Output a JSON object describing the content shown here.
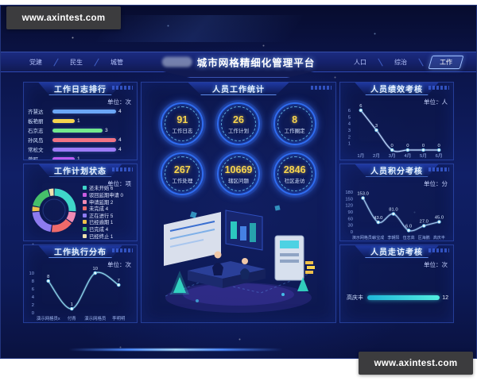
{
  "watermark": {
    "text": "www.axintest.com"
  },
  "navbar": {
    "left_tabs": [
      "党建",
      "民生",
      "城管"
    ],
    "title": "城市网格精细化管理平台",
    "right_tabs": [
      "人口",
      "综治"
    ],
    "active_tab": "工作"
  },
  "stats_panel": {
    "title": "人员工作统计",
    "stats": [
      {
        "value": "91",
        "label": "工作日志"
      },
      {
        "value": "26",
        "label": "工作计划"
      },
      {
        "value": "8",
        "label": "工作圈定"
      },
      {
        "value": "267",
        "label": "工作处理"
      },
      {
        "value": "10669",
        "label": "辖区问题"
      },
      {
        "value": "2846",
        "label": "社区走访"
      }
    ],
    "value_color": "#f7d44e",
    "ring_color": "#2f6cf0"
  },
  "chart_data": [
    {
      "id": "work_log_ranking",
      "type": "bar",
      "orientation": "horizontal",
      "title": "工作日志排行",
      "unit": "单位：次",
      "categories": [
        "齐慧达",
        "板艳丽",
        "石京志",
        "孙风岛",
        "常松文",
        "曾町"
      ],
      "values": [
        4,
        1,
        3,
        4,
        4,
        1
      ],
      "colors": [
        "#6ba7f7",
        "#f5d44e",
        "#72e98c",
        "#f07384",
        "#9d7bf7",
        "#bb5bf0"
      ],
      "xlim": [
        0,
        4
      ]
    },
    {
      "id": "work_plan_status",
      "type": "pie",
      "title": "工作计划状态",
      "unit": "单位：项",
      "labels": [
        "还未开始",
        "驳回延期申请",
        "申请延期",
        "未完成",
        "正在进行",
        "已经逾期",
        "已完成",
        "已经终止"
      ],
      "values": [
        6,
        0,
        2,
        4,
        5,
        1,
        4,
        1
      ],
      "colors": [
        "#3fd6c9",
        "#c95ce0",
        "#f08bb4",
        "#ef6a6a",
        "#8d7bf0",
        "#efc04a",
        "#46c06a",
        "#efe2ae"
      ],
      "legend_position": "right"
    },
    {
      "id": "work_exec_distribution",
      "type": "line",
      "title": "工作执行分布",
      "unit": "单位：次",
      "categories": [
        "演示网格员x",
        "付青",
        "演示网格员",
        "李明明"
      ],
      "values": [
        8,
        1,
        10,
        7
      ],
      "point_labels": [
        "8",
        "1",
        "10",
        "7"
      ],
      "yticks": [
        10,
        8,
        6,
        4,
        2,
        0
      ],
      "ylim": [
        0,
        10
      ],
      "color": "#8fd8ef"
    },
    {
      "id": "performance_assessment",
      "type": "line",
      "title": "人员绩效考核",
      "unit": "单位：人",
      "categories": [
        "1月",
        "2月",
        "3月",
        "4月",
        "5月",
        "6月"
      ],
      "values": [
        6,
        3,
        0,
        0,
        0,
        0
      ],
      "point_labels": [
        "6",
        "3",
        "0",
        "0",
        "0",
        "0"
      ],
      "yticks": [
        6,
        5,
        4,
        3,
        2,
        1
      ],
      "ylim": [
        0,
        6
      ],
      "color": "#bcd8ff"
    },
    {
      "id": "points_assessment",
      "type": "line",
      "title": "人员积分考核",
      "unit": "单位：分",
      "categories": [
        "演示网格员x",
        "徐宝成",
        "李朝阳",
        "伍志高",
        "区海鹏",
        "高庆丰"
      ],
      "values": [
        153,
        43,
        81,
        6,
        27,
        45
      ],
      "point_labels": [
        "153.0",
        "43.0",
        "81.0",
        "6.0",
        "27.0",
        "45.0"
      ],
      "yticks": [
        180,
        150,
        120,
        90,
        60,
        30,
        0
      ],
      "ylim": [
        0,
        180
      ],
      "color": "#9fc6ef"
    },
    {
      "id": "visit_assessment",
      "type": "bar",
      "orientation": "horizontal",
      "title": "人员走访考核",
      "unit": "单位：次",
      "categories": [
        "高庆丰"
      ],
      "values": [
        12
      ],
      "colors": [
        "#35d8e8"
      ],
      "xlim": [
        0,
        12
      ]
    }
  ]
}
